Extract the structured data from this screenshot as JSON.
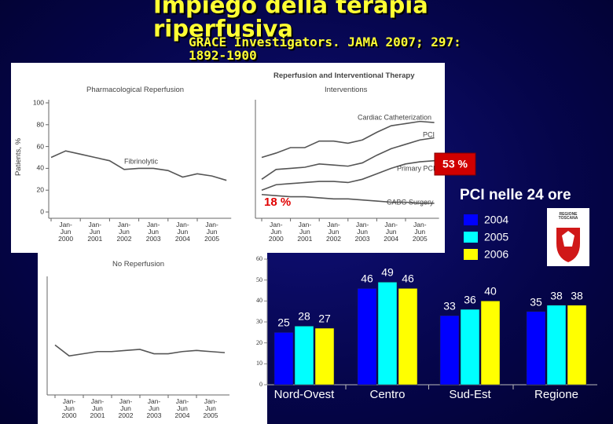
{
  "title": "Impiego della terapia riperfusiva",
  "subtitle": "GRACE Investigators. JAMA 2007; 297: 1892-1900",
  "annotations": {
    "box": "53 %",
    "low": "18 %",
    "heading": "PCI nelle 24 ore",
    "logo": "REGIONE\nTOSCANA"
  },
  "chart_data": [
    {
      "type": "line",
      "title": "Pharmacological Reperfusion",
      "ylabel": "Patients, %",
      "categories": [
        null,
        "Jan-\nJun\n2000",
        null,
        "Jan-\nJun\n2001",
        null,
        "Jan-\nJun\n2002",
        null,
        "Jan-\nJun\n2003",
        null,
        "Jan-\nJun\n2004",
        null,
        "Jan-\nJun\n2005",
        null
      ],
      "ylim": [
        0,
        100
      ],
      "yticks": [
        0,
        20,
        40,
        60,
        80,
        100
      ],
      "series": [
        {
          "name": "Fibrinolytic",
          "color": "#555555",
          "values": [
            50,
            56,
            53,
            50,
            47,
            39,
            40,
            40,
            38,
            32,
            35,
            33,
            29
          ]
        }
      ]
    },
    {
      "type": "line",
      "title": "Reperfusion and Interventional Therapy",
      "subtitle": "Interventions",
      "categories": [
        null,
        "Jan-\nJun\n2000",
        null,
        "Jan-\nJun\n2001",
        null,
        "Jan-\nJun\n2002",
        null,
        "Jan-\nJun\n2003",
        null,
        "Jan-\nJun\n2004",
        null,
        "Jan-\nJun\n2005",
        null
      ],
      "ylim": [
        0,
        100
      ],
      "series": [
        {
          "name": "Cardiac Catheterization",
          "color": "#555555",
          "values": [
            50,
            54,
            59,
            59,
            65,
            65,
            63,
            66,
            73,
            79,
            81,
            83,
            82
          ]
        },
        {
          "name": "PCI",
          "color": "#555555",
          "values": [
            30,
            39,
            40,
            41,
            44,
            43,
            42,
            45,
            52,
            58,
            62,
            66,
            68
          ]
        },
        {
          "name": "Primary PCI",
          "color": "#555555",
          "values": [
            20,
            25,
            26,
            27,
            28,
            28,
            27,
            30,
            35,
            40,
            44,
            46,
            47
          ]
        },
        {
          "name": "CABG Surgery",
          "color": "#555555",
          "values": [
            16,
            15,
            14,
            14,
            13,
            12,
            12,
            11,
            10,
            9,
            9,
            8,
            8
          ]
        }
      ]
    },
    {
      "type": "line",
      "title": "No Reperfusion",
      "categories": [
        null,
        "Jan-\nJun\n2000",
        null,
        "Jan-\nJun\n2001",
        null,
        "Jan-\nJun\n2002",
        null,
        "Jan-\nJun\n2003",
        null,
        "Jan-\nJun\n2004",
        null,
        "Jan-\nJun\n2005",
        null
      ],
      "ylim": [
        0,
        100
      ],
      "series": [
        {
          "color": "#555555",
          "values": [
            40,
            30,
            32,
            34,
            34,
            35,
            36,
            32,
            32,
            34,
            35,
            34,
            33
          ]
        }
      ]
    },
    {
      "type": "bar",
      "categories": [
        "Nord-Ovest",
        "Centro",
        "Sud-Est",
        "Regione"
      ],
      "ylim": [
        0,
        60
      ],
      "yticks": [
        0,
        10,
        20,
        30,
        40,
        50,
        60
      ],
      "series": [
        {
          "name": "2004",
          "color": "#0000ff",
          "values": [
            25,
            46,
            33,
            35
          ]
        },
        {
          "name": "2005",
          "color": "#00ffff",
          "values": [
            28,
            49,
            36,
            38
          ]
        },
        {
          "name": "2006",
          "color": "#ffff00",
          "values": [
            27,
            46,
            40,
            38
          ]
        }
      ]
    }
  ]
}
